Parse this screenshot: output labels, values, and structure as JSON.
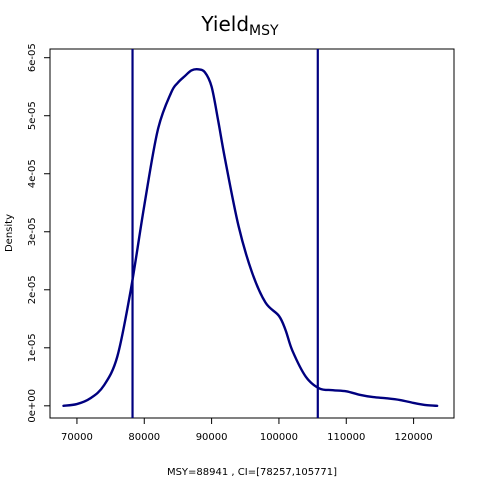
{
  "chart_data": {
    "type": "line",
    "title": "Yield",
    "title_subscript": "MSY",
    "xlabel": "MSY=88941 , CI=[78257,105771]",
    "ylabel": "Density",
    "xlim": [
      66000,
      126000
    ],
    "ylim": [
      -2.1e-06,
      6.15e-05
    ],
    "grid": false,
    "x_ticks": [
      {
        "value": 70000,
        "label": "70000"
      },
      {
        "value": 80000,
        "label": "80000"
      },
      {
        "value": 90000,
        "label": "90000"
      },
      {
        "value": 100000,
        "label": "100000"
      },
      {
        "value": 110000,
        "label": "110000"
      },
      {
        "value": 120000,
        "label": "120000"
      }
    ],
    "y_ticks": [
      {
        "value": 0,
        "label": "0e+00"
      },
      {
        "value": 1e-05,
        "label": "1e-05"
      },
      {
        "value": 2e-05,
        "label": "2e-05"
      },
      {
        "value": 3e-05,
        "label": "3e-05"
      },
      {
        "value": 4e-05,
        "label": "4e-05"
      },
      {
        "value": 5e-05,
        "label": "5e-05"
      },
      {
        "value": 6e-05,
        "label": "6e-05"
      }
    ],
    "vlines": [
      78257,
      105771
    ],
    "line_color": "#00007f",
    "series": [
      {
        "x": [
          68000,
          70000,
          72000,
          74000,
          76000,
          78000,
          80000,
          82000,
          84000,
          85000,
          86000,
          87000,
          88000,
          89000,
          90000,
          91000,
          92000,
          94000,
          96000,
          98000,
          100000,
          101000,
          102000,
          104000,
          106000,
          108000,
          110000,
          112000,
          114000,
          116000,
          118000,
          120000,
          122000,
          123500
        ],
        "values": [
          0.0,
          3e-07,
          1.3e-06,
          3.5e-06,
          8.5e-06,
          2e-05,
          3.45e-05,
          4.75e-05,
          5.4e-05,
          5.57e-05,
          5.68e-05,
          5.78e-05,
          5.8e-05,
          5.75e-05,
          5.5e-05,
          4.9e-05,
          4.25e-05,
          3.1e-05,
          2.3e-05,
          1.78e-05,
          1.55e-05,
          1.3e-05,
          9.5e-06,
          5e-06,
          3e-06,
          2.7e-06,
          2.5e-06,
          1.9e-06,
          1.5e-06,
          1.3e-06,
          1e-06,
          5e-07,
          1e-07,
          0.0
        ]
      }
    ]
  }
}
